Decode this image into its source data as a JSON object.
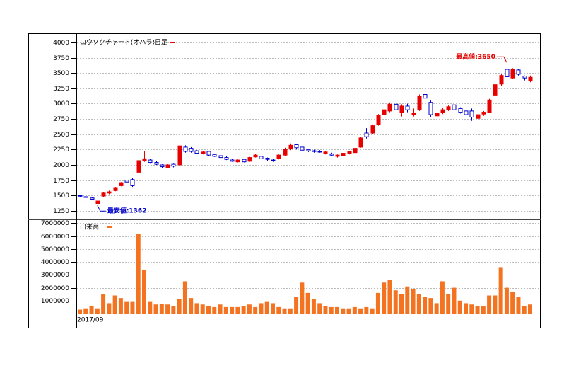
{
  "chart_data": [
    {
      "type": "candlestick",
      "title": "ロウソクチャート(オハラ)日足",
      "up_color": "#e60000",
      "down_color": "#0000cc",
      "max_label": "最高値:3650",
      "min_label": "最安値:1362",
      "ylim": [
        1110,
        4150
      ],
      "yticks": [
        1250,
        1500,
        1750,
        2000,
        2250,
        2500,
        2750,
        3000,
        3250,
        3500,
        3750,
        4000
      ],
      "grid": true,
      "ohlc": [
        [
          1500,
          1505,
          1480,
          1490
        ],
        [
          1480,
          1490,
          1460,
          1470
        ],
        [
          1460,
          1470,
          1430,
          1440
        ],
        [
          1370,
          1420,
          1362,
          1410
        ],
        [
          1490,
          1550,
          1480,
          1540
        ],
        [
          1540,
          1580,
          1520,
          1560
        ],
        [
          1580,
          1640,
          1570,
          1630
        ],
        [
          1660,
          1720,
          1650,
          1710
        ],
        [
          1750,
          1780,
          1700,
          1720
        ],
        [
          1760,
          1780,
          1640,
          1660
        ],
        [
          1880,
          2080,
          1870,
          2070
        ],
        [
          2070,
          2230,
          2050,
          2100
        ],
        [
          2080,
          2100,
          2020,
          2040
        ],
        [
          2040,
          2060,
          2000,
          2010
        ],
        [
          2000,
          2010,
          1950,
          1970
        ],
        [
          1960,
          2010,
          1950,
          2000
        ],
        [
          2010,
          2020,
          1960,
          1980
        ],
        [
          2000,
          2330,
          1990,
          2310
        ],
        [
          2290,
          2320,
          2200,
          2220
        ],
        [
          2270,
          2290,
          2200,
          2220
        ],
        [
          2230,
          2240,
          2180,
          2190
        ],
        [
          2180,
          2230,
          2170,
          2210
        ],
        [
          2220,
          2230,
          2140,
          2160
        ],
        [
          2170,
          2180,
          2130,
          2140
        ],
        [
          2150,
          2160,
          2100,
          2120
        ],
        [
          2120,
          2140,
          2080,
          2090
        ],
        [
          2080,
          2100,
          2050,
          2060
        ],
        [
          2050,
          2090,
          2040,
          2080
        ],
        [
          2090,
          2100,
          2040,
          2050
        ],
        [
          2060,
          2130,
          2050,
          2120
        ],
        [
          2130,
          2180,
          2120,
          2160
        ],
        [
          2140,
          2150,
          2090,
          2100
        ],
        [
          2110,
          2120,
          2070,
          2090
        ],
        [
          2080,
          2100,
          2050,
          2070
        ],
        [
          2100,
          2170,
          2090,
          2160
        ],
        [
          2160,
          2280,
          2140,
          2260
        ],
        [
          2260,
          2350,
          2240,
          2320
        ],
        [
          2330,
          2340,
          2250,
          2280
        ],
        [
          2290,
          2300,
          2220,
          2240
        ],
        [
          2250,
          2260,
          2210,
          2230
        ],
        [
          2230,
          2250,
          2200,
          2220
        ],
        [
          2220,
          2240,
          2200,
          2210
        ],
        [
          2190,
          2220,
          2170,
          2210
        ],
        [
          2180,
          2200,
          2140,
          2160
        ],
        [
          2140,
          2170,
          2120,
          2160
        ],
        [
          2150,
          2200,
          2140,
          2190
        ],
        [
          2190,
          2230,
          2170,
          2220
        ],
        [
          2200,
          2280,
          2180,
          2270
        ],
        [
          2290,
          2460,
          2280,
          2440
        ],
        [
          2520,
          2600,
          2430,
          2460
        ],
        [
          2520,
          2660,
          2500,
          2640
        ],
        [
          2660,
          2830,
          2640,
          2810
        ],
        [
          2820,
          2920,
          2780,
          2900
        ],
        [
          2880,
          3020,
          2860,
          2990
        ],
        [
          2990,
          3030,
          2880,
          2900
        ],
        [
          2860,
          2990,
          2790,
          2960
        ],
        [
          2960,
          3000,
          2860,
          2900
        ],
        [
          2820,
          2920,
          2790,
          2850
        ],
        [
          2900,
          3150,
          2880,
          3120
        ],
        [
          3150,
          3200,
          3060,
          3090
        ],
        [
          3020,
          3050,
          2780,
          2820
        ],
        [
          2800,
          2880,
          2780,
          2840
        ],
        [
          2850,
          2930,
          2830,
          2900
        ],
        [
          2900,
          2970,
          2880,
          2950
        ],
        [
          2980,
          2990,
          2880,
          2900
        ],
        [
          2920,
          2940,
          2840,
          2860
        ],
        [
          2880,
          2900,
          2800,
          2820
        ],
        [
          2880,
          2920,
          2720,
          2780
        ],
        [
          2760,
          2830,
          2740,
          2820
        ],
        [
          2830,
          2880,
          2800,
          2860
        ],
        [
          2860,
          3080,
          2850,
          3060
        ],
        [
          3140,
          3330,
          3120,
          3310
        ],
        [
          3320,
          3490,
          3290,
          3460
        ],
        [
          3560,
          3650,
          3420,
          3440
        ],
        [
          3420,
          3580,
          3400,
          3560
        ],
        [
          3550,
          3570,
          3460,
          3480
        ],
        [
          3450,
          3460,
          3380,
          3420
        ],
        [
          3380,
          3460,
          3350,
          3430
        ]
      ]
    },
    {
      "type": "bar",
      "title": "出来高",
      "color": "#f47321",
      "ylim": [
        0,
        7300000
      ],
      "yticks": [
        1000000,
        2000000,
        3000000,
        4000000,
        5000000,
        6000000,
        7000000
      ],
      "grid": true,
      "categories": [
        "2017/09",
        null,
        null,
        null,
        null,
        null,
        null,
        null,
        null,
        null,
        null,
        null,
        null,
        null,
        null,
        null,
        null,
        null,
        null,
        null,
        null,
        null,
        null,
        null,
        null,
        null,
        null,
        null,
        null,
        null,
        null,
        null,
        null,
        null,
        null,
        null,
        null,
        null,
        null,
        null,
        null,
        null,
        null,
        null,
        null,
        null,
        null,
        null,
        null,
        null,
        null,
        null,
        null,
        null,
        null,
        null,
        null,
        null,
        null,
        null,
        null,
        null,
        null,
        null,
        null,
        null,
        null,
        null,
        null,
        null,
        null,
        null,
        null,
        null,
        null,
        null,
        null,
        null
      ],
      "values": [
        300000,
        400000,
        600000,
        400000,
        1500000,
        800000,
        1400000,
        1200000,
        900000,
        900000,
        6200000,
        3400000,
        900000,
        700000,
        750000,
        700000,
        600000,
        1100000,
        2500000,
        1200000,
        800000,
        700000,
        600000,
        500000,
        700000,
        500000,
        500000,
        500000,
        600000,
        700000,
        500000,
        800000,
        900000,
        800000,
        500000,
        400000,
        400000,
        1300000,
        2400000,
        1600000,
        1100000,
        800000,
        600000,
        500000,
        500000,
        400000,
        400000,
        500000,
        400000,
        500000,
        400000,
        1600000,
        2400000,
        2600000,
        1800000,
        1500000,
        2100000,
        1900000,
        1500000,
        1300000,
        1200000,
        800000,
        2500000,
        1500000,
        2000000,
        1000000,
        800000,
        700000,
        600000,
        600000,
        1400000,
        1400000,
        3600000,
        2000000,
        1700000,
        1300000,
        600000,
        700000
      ]
    }
  ]
}
